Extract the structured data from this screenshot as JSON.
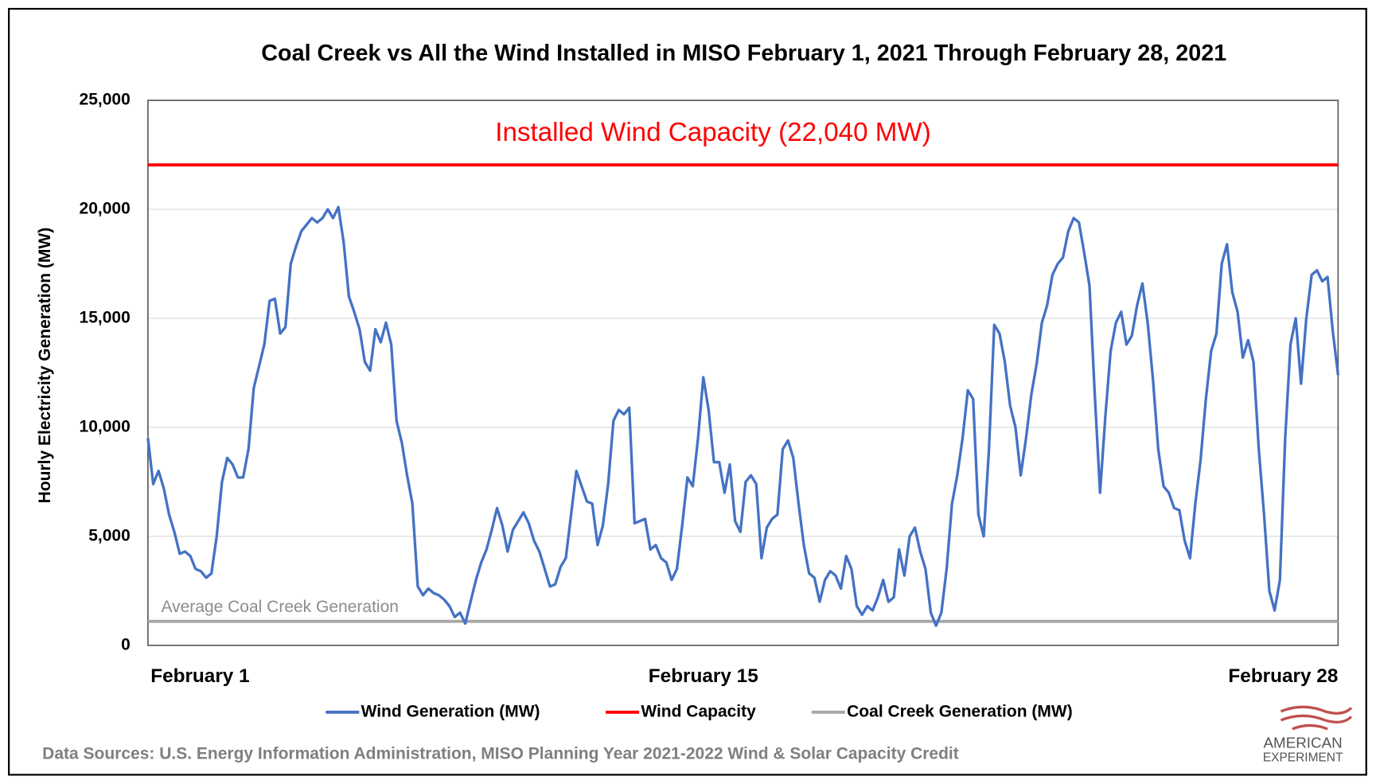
{
  "chart_data": {
    "type": "line",
    "title": "Coal Creek vs All the Wind Installed in MISO February 1, 2021 Through February 28, 2021",
    "y_label": "Hourly Electricity Generation (MW)",
    "source": "Data Sources: U.S. Energy Information Administration, MISO Planning Year 2021-2022 Wind & Solar Capacity Credit",
    "logo": [
      "AMERICAN",
      "EXPERIMENT"
    ],
    "ylim": [
      0,
      25000
    ],
    "yticks": [
      {
        "value": 0,
        "label": "0"
      },
      {
        "value": 5000,
        "label": "5,000"
      },
      {
        "value": 10000,
        "label": "10,000"
      },
      {
        "value": 15000,
        "label": "15,000"
      },
      {
        "value": 20000,
        "label": "20,000"
      },
      {
        "value": 25000,
        "label": "25,000"
      }
    ],
    "grid": true,
    "categories": [
      "February 1",
      null,
      null,
      null,
      null,
      null,
      null,
      null,
      null,
      null,
      null,
      null,
      null,
      null,
      null,
      null,
      null,
      null,
      null,
      null,
      null,
      null,
      null,
      null,
      null,
      null,
      null,
      null,
      null,
      null,
      null,
      null,
      null,
      null,
      null,
      null,
      null,
      null,
      null,
      null,
      null,
      null,
      null,
      null,
      null,
      null,
      null,
      null,
      null,
      null,
      null,
      null,
      null,
      null,
      null,
      null,
      null,
      null,
      null,
      null,
      null,
      null,
      null,
      null,
      null,
      null,
      null,
      null,
      null,
      null,
      null,
      null,
      null,
      null,
      null,
      null,
      null,
      null,
      null,
      null,
      null,
      null,
      null,
      null,
      null,
      null,
      null,
      null,
      null,
      null,
      null,
      null,
      null,
      null,
      null,
      null,
      null,
      null,
      null,
      null,
      null,
      null,
      null,
      null,
      null,
      "February 15",
      null,
      null,
      null,
      null,
      null,
      null,
      null,
      null,
      null,
      null,
      null,
      null,
      null,
      null,
      null,
      null,
      null,
      null,
      null,
      null,
      null,
      null,
      null,
      null,
      null,
      null,
      null,
      null,
      null,
      null,
      null,
      null,
      null,
      null,
      null,
      null,
      null,
      null,
      null,
      null,
      null,
      null,
      null,
      null,
      null,
      null,
      null,
      null,
      null,
      null,
      null,
      null,
      null,
      null,
      null,
      null,
      null,
      null,
      null,
      null,
      null,
      null,
      null,
      null,
      null,
      null,
      null,
      null,
      null,
      null,
      null,
      null,
      null,
      null,
      null,
      null,
      null,
      null,
      null,
      null,
      null,
      null,
      null,
      null,
      null,
      null,
      null,
      null,
      null,
      null,
      null,
      null,
      null,
      null,
      null,
      null,
      null,
      null,
      null,
      null,
      null,
      null,
      null,
      null,
      null,
      null,
      null,
      null,
      null,
      null,
      null,
      null,
      null,
      null,
      null,
      null,
      null,
      null,
      null,
      "February 28"
    ],
    "series": [
      {
        "name": "Wind Generation (MW)",
        "color": "#4472c4",
        "values": [
          9500,
          7400,
          8000,
          7200,
          6000,
          5200,
          4200,
          4300,
          4100,
          3500,
          3400,
          3100,
          3300,
          5000,
          7500,
          8600,
          8300,
          7700,
          7700,
          9000,
          11800,
          12800,
          13800,
          15800,
          15900,
          14300,
          14600,
          17500,
          18300,
          19000,
          19300,
          19600,
          19400,
          19600,
          20000,
          19600,
          20100,
          18500,
          16000,
          15300,
          14500,
          13000,
          12600,
          14500,
          13900,
          14800,
          13800,
          10300,
          9300,
          7800,
          6500,
          2700,
          2300,
          2600,
          2400,
          2300,
          2100,
          1800,
          1300,
          1500,
          1000,
          2000,
          3000,
          3800,
          4400,
          5300,
          6300,
          5500,
          4300,
          5300,
          5700,
          6100,
          5600,
          4800,
          4300,
          3500,
          2700,
          2800,
          3600,
          4000,
          6000,
          8000,
          7300,
          6600,
          6500,
          4600,
          5500,
          7400,
          10300,
          10800,
          10600,
          10900,
          5600,
          5700,
          5800,
          4400,
          4600,
          4000,
          3800,
          3000,
          3500,
          5500,
          7700,
          7300,
          9500,
          12300,
          10800,
          8400,
          8400,
          7000,
          8300,
          5700,
          5200,
          7500,
          7800,
          7400,
          4000,
          5400,
          5800,
          6000,
          9000,
          9400,
          8600,
          6500,
          4600,
          3300,
          3100,
          2000,
          3000,
          3400,
          3200,
          2600,
          4100,
          3500,
          1800,
          1400,
          1800,
          1600,
          2200,
          3000,
          2000,
          2200,
          4400,
          3200,
          5000,
          5400,
          4300,
          3500,
          1500,
          900,
          1500,
          3500,
          6500,
          7800,
          9500,
          11700,
          11300,
          6000,
          5000,
          9000,
          14700,
          14300,
          13000,
          11000,
          10000,
          7800,
          9500,
          11500,
          12900,
          14800,
          15600,
          17000,
          17500,
          17800,
          19000,
          19600,
          19400,
          18000,
          16500,
          11500,
          7000,
          10500,
          13500,
          14800,
          15300,
          13800,
          14200,
          15600,
          16600,
          14800,
          12200,
          9000,
          7300,
          7000,
          6300,
          6200,
          4800,
          4000,
          6500,
          8500,
          11300,
          13500,
          14300,
          17500,
          18400,
          16200,
          15300,
          13200,
          14000,
          13000,
          9000,
          6000,
          2500,
          1600,
          3000,
          9500,
          13800,
          15000,
          12000,
          15000,
          17000,
          17200,
          16700,
          16900,
          14400,
          12400
        ]
      }
    ],
    "reference_lines": [
      {
        "name": "Wind Capacity",
        "color": "#ff0000",
        "value": 22040,
        "label": "Installed Wind Capacity (22,040 MW)"
      },
      {
        "name": "Coal Creek Generation (MW)",
        "color": "#a6a6a6",
        "value": 1100,
        "label": "Average Coal Creek Generation"
      }
    ]
  }
}
